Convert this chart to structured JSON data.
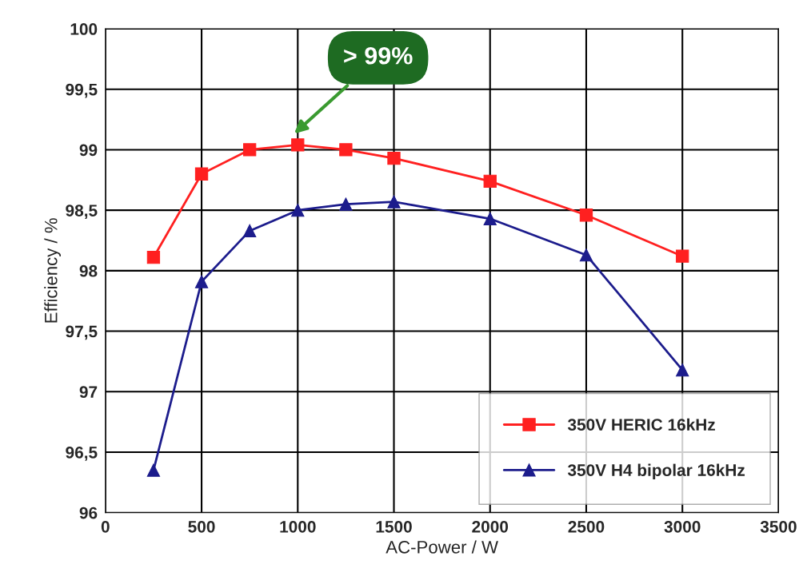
{
  "chart_data": {
    "type": "line",
    "xlabel": "AC-Power / W",
    "ylabel": "Efficiency / %",
    "x": [
      250,
      500,
      750,
      1000,
      1250,
      1500,
      2000,
      2500,
      3000
    ],
    "series": [
      {
        "name": "350V HERIC 16kHz",
        "color": "#ff2020",
        "marker": "square",
        "values": [
          98.11,
          98.8,
          99.0,
          99.04,
          99.0,
          98.93,
          98.74,
          98.46,
          98.12
        ]
      },
      {
        "name": "350V H4 bipolar 16kHz",
        "color": "#1c1c8c",
        "marker": "triangle",
        "values": [
          96.35,
          97.91,
          98.33,
          98.5,
          98.55,
          98.57,
          98.43,
          98.13,
          97.18
        ]
      }
    ],
    "xlim": [
      0,
      3500
    ],
    "xticks": [
      0,
      500,
      1000,
      1500,
      2000,
      2500,
      3000,
      3500
    ],
    "ylim": [
      96,
      100
    ],
    "yticks": [
      96,
      {
        "value": 96.5,
        "label": "96,5"
      },
      97,
      {
        "value": 97.5,
        "label": "97,5"
      },
      98,
      {
        "value": 98.5,
        "label": "98,5"
      },
      99,
      {
        "value": 99.5,
        "label": "99,5"
      },
      100
    ],
    "annotations": [
      "> 99%"
    ],
    "grid": true,
    "legend": "bottom right",
    "line_style": "solid"
  }
}
